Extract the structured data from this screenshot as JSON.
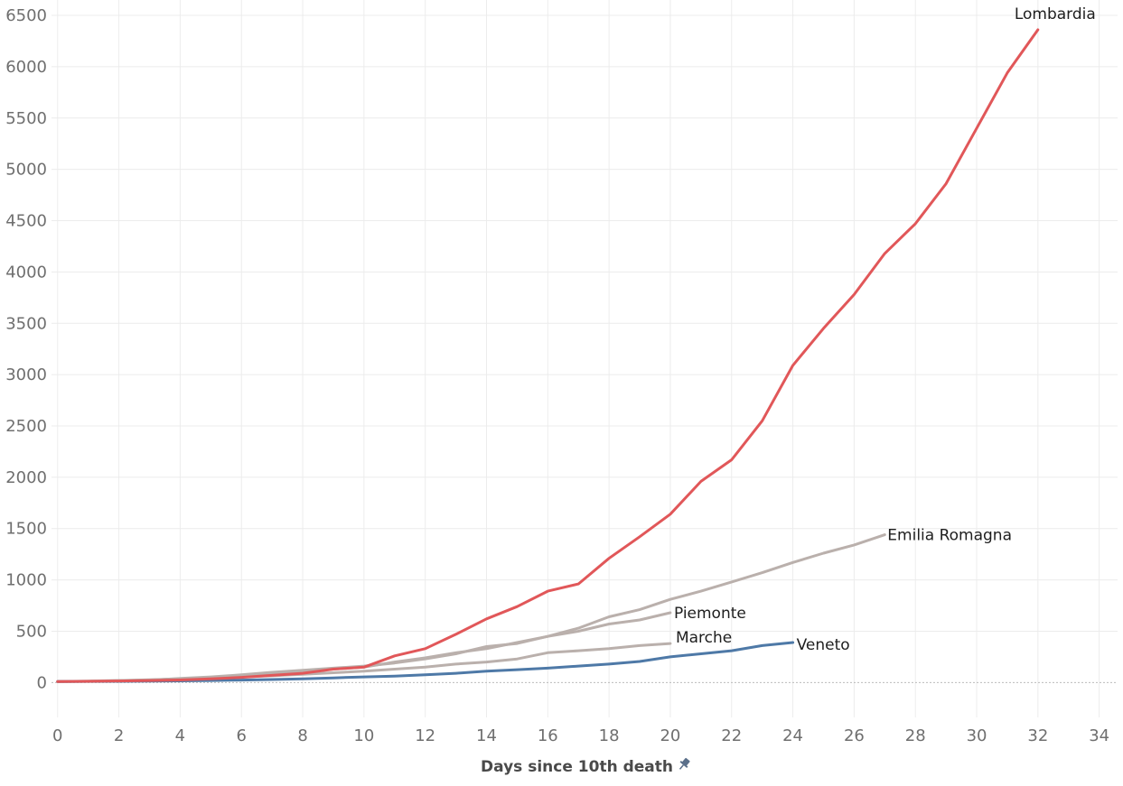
{
  "chart_data": {
    "type": "line",
    "xlabel": "Days since 10th death",
    "ylabel": "",
    "xlim": [
      -0.2,
      34.6
    ],
    "ylim": [
      -340,
      6650
    ],
    "x_ticks": [
      0,
      2,
      4,
      6,
      8,
      10,
      12,
      14,
      16,
      18,
      20,
      22,
      24,
      26,
      28,
      30,
      32,
      34
    ],
    "y_ticks": [
      0,
      500,
      1000,
      1500,
      2000,
      2500,
      3000,
      3500,
      4000,
      4500,
      5000,
      5500,
      6000,
      6500
    ],
    "grid": true,
    "axis_icon": "pin-icon",
    "series": [
      {
        "name": "Emilia Romagna",
        "color": "#bab0ac",
        "x": [
          0,
          1,
          2,
          3,
          4,
          5,
          6,
          7,
          8,
          9,
          10,
          11,
          12,
          13,
          14,
          15,
          16,
          17,
          18,
          19,
          20,
          21,
          22,
          23,
          24,
          25,
          26,
          27
        ],
        "values": [
          10,
          12,
          16,
          23,
          40,
          55,
          75,
          100,
          120,
          140,
          160,
          190,
          230,
          280,
          350,
          380,
          450,
          530,
          640,
          710,
          810,
          890,
          980,
          1070,
          1170,
          1260,
          1340,
          1440
        ]
      },
      {
        "name": "Piemonte",
        "color": "#bab0ac",
        "x": [
          0,
          1,
          2,
          3,
          4,
          5,
          6,
          7,
          8,
          9,
          10,
          11,
          12,
          13,
          14,
          15,
          16,
          17,
          18,
          19,
          20
        ],
        "values": [
          10,
          13,
          18,
          25,
          35,
          50,
          70,
          90,
          110,
          130,
          150,
          200,
          240,
          290,
          330,
          390,
          450,
          500,
          570,
          610,
          680
        ]
      },
      {
        "name": "Marche",
        "color": "#bab0ac",
        "x": [
          0,
          1,
          2,
          3,
          4,
          5,
          6,
          7,
          8,
          9,
          10,
          11,
          12,
          13,
          14,
          15,
          16,
          17,
          18,
          19,
          20
        ],
        "values": [
          10,
          14,
          20,
          27,
          35,
          45,
          55,
          65,
          80,
          95,
          110,
          130,
          150,
          180,
          200,
          230,
          290,
          310,
          330,
          360,
          380
        ]
      },
      {
        "name": "Veneto",
        "color": "#4e79a7",
        "x": [
          0,
          1,
          2,
          3,
          4,
          5,
          6,
          7,
          8,
          9,
          10,
          11,
          12,
          13,
          14,
          15,
          16,
          17,
          18,
          19,
          20,
          21,
          22,
          23,
          24
        ],
        "values": [
          10,
          11,
          12,
          14,
          16,
          20,
          24,
          29,
          35,
          45,
          55,
          62,
          75,
          90,
          110,
          125,
          140,
          160,
          180,
          205,
          250,
          280,
          310,
          360,
          390
        ]
      },
      {
        "name": "Lombardia",
        "color": "#e15759",
        "x": [
          0,
          1,
          2,
          3,
          4,
          5,
          6,
          7,
          8,
          9,
          10,
          11,
          12,
          13,
          14,
          15,
          16,
          17,
          18,
          19,
          20,
          21,
          22,
          23,
          24,
          25,
          26,
          27,
          28,
          29,
          30,
          31,
          32
        ],
        "values": [
          10,
          12,
          15,
          20,
          25,
          35,
          50,
          70,
          90,
          130,
          150,
          260,
          330,
          470,
          620,
          740,
          890,
          960,
          1210,
          1420,
          1640,
          1960,
          2170,
          2550,
          3090,
          3450,
          3780,
          4180,
          4470,
          4860,
          5400,
          5940,
          6360
        ]
      }
    ]
  }
}
